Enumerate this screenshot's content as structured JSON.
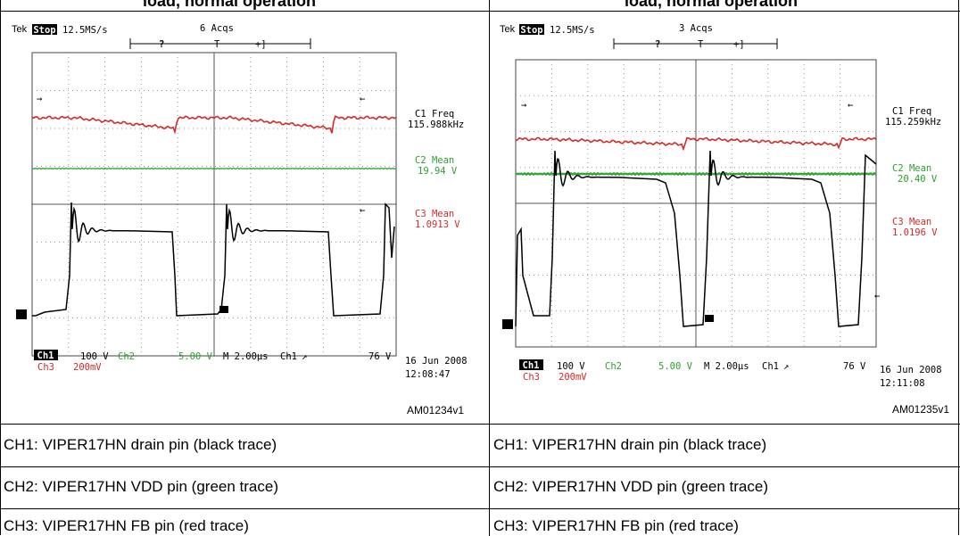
{
  "headers": [
    "load, normal operation",
    "load, normal operation"
  ],
  "panels": [
    {
      "brand": "Tek",
      "mode": "Stop",
      "rate": "12.5MS/s",
      "acqs": "6 Acqs",
      "trigger_markers": [
        "?",
        "T",
        "+]"
      ],
      "readouts": [
        {
          "name": "C1 Freq",
          "value": "115.988kHz",
          "color": "#000000"
        },
        {
          "name": "C2 Mean",
          "value": "19.94 V",
          "color": "#2ea02e"
        },
        {
          "name": "C3 Mean",
          "value": "1.0913 V",
          "color": "#d42a2a"
        }
      ],
      "bottom": {
        "ch1": "Ch1",
        "ch1_scale": "100 V",
        "ch2": "Ch2",
        "ch2_scale": "5.00 V",
        "timebase": "M 2.00µs",
        "trig_src": "Ch1",
        "trig_slope": "↗",
        "trig_level": "76 V",
        "ch3": "Ch3",
        "ch3_scale": "200mV"
      },
      "date": "16 Jun 2008",
      "time": "12:08:47",
      "figure_id": "AM01234v1"
    },
    {
      "brand": "Tek",
      "mode": "Stop",
      "rate": "12.5MS/s",
      "acqs": "3 Acqs",
      "trigger_markers": [
        "?",
        "T",
        "+]"
      ],
      "readouts": [
        {
          "name": "C1 Freq",
          "value": "115.259kHz",
          "color": "#000000"
        },
        {
          "name": "C2 Mean",
          "value": "20.40 V",
          "color": "#2ea02e"
        },
        {
          "name": "C3 Mean",
          "value": "1.0196 V",
          "color": "#d42a2a"
        }
      ],
      "bottom": {
        "ch1": "Ch1",
        "ch1_scale": "100 V",
        "ch2": "Ch2",
        "ch2_scale": "5.00 V",
        "timebase": "M 2.00µs",
        "trig_src": "Ch1",
        "trig_slope": "↗",
        "trig_level": "76 V",
        "ch3": "Ch3",
        "ch3_scale": "200mV"
      },
      "date": "16 Jun 2008",
      "time": "12:11:08",
      "figure_id": "AM01235v1"
    }
  ],
  "captions": {
    "left": [
      "CH1: VIPER17HN drain pin (black trace)",
      "CH2: VIPER17HN VDD pin (green trace)",
      "CH3: VIPER17HN FB pin (red trace)"
    ],
    "right": [
      "CH1: VIPER17HN drain pin (black trace)",
      "CH2: VIPER17HN VDD pin (green trace)",
      "CH3: VIPER17HN FB pin (red trace)"
    ]
  },
  "colors": {
    "ch1": "#000000",
    "ch2": "#2ea02e",
    "ch3": "#d42a2a",
    "brand": "#cc3399"
  }
}
